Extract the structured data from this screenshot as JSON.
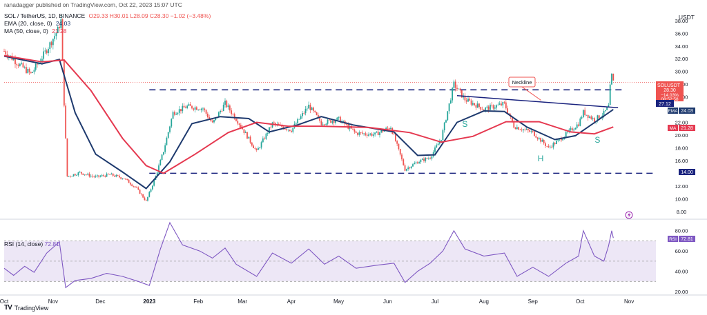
{
  "header": {
    "publisher": "ranadagger published on TradingView.com, Oct 22, 2023 15:07 UTC",
    "symbol": "SOL / TetherUS, 1D, BINANCE",
    "ohlc": "O29.33 H30.01 L28.09 C28.30 −1.02 (−3.48%)",
    "ema_label": "EMA (20, close, 0)",
    "ema_value": "24.03",
    "ma_label": "MA (50, close, 0)",
    "ma_value": "21.28",
    "currency": "USDT"
  },
  "rsi": {
    "label": "RSI (14, close)",
    "value": "72.81",
    "badge": "RSI",
    "ticks": [
      "80.00",
      "60.00",
      "40.00",
      "20.00"
    ],
    "tick_values": [
      80,
      60,
      40,
      20
    ],
    "upper_band": 70,
    "lower_band": 30
  },
  "badges": {
    "price_symbol": "SOLUSDT",
    "price": "28.30",
    "price_change": "−14.03%",
    "countdown": "08:52:58",
    "level_27": "27.12",
    "ema_tag": "EMA",
    "ema_value": "24.03",
    "ma_tag": "MA",
    "ma_value": "21.28",
    "support": "14.00"
  },
  "annotations": {
    "neckline": "Neckline",
    "left_shoulder": "S",
    "head": "H",
    "right_shoulder": "S"
  },
  "logo": {
    "mark": "TV",
    "text": "TradingView"
  },
  "colors": {
    "up": "#26a69a",
    "down": "#ef5350",
    "ema": "#1e3a6e",
    "ma": "#e53950",
    "level_line": "#1a237e",
    "rsi": "#7e57c2",
    "rsi_band": "#ede7f6",
    "badge_price": "#ef5350",
    "badge_level": "#1a237e",
    "pattern_label": "#26a69a"
  },
  "chart_data": {
    "type": "candlestick",
    "title": "SOL / TetherUS, 1D, BINANCE",
    "x_ticks": [
      "Oct",
      "Nov",
      "Dec",
      "2023",
      "Feb",
      "Mar",
      "Apr",
      "May",
      "Jun",
      "Jul",
      "Aug",
      "Sep",
      "Oct",
      "Nov"
    ],
    "x_tick_dates": [
      "2022-10-01",
      "2022-11-01",
      "2022-12-01",
      "2023-01-01",
      "2023-02-01",
      "2023-03-01",
      "2023-04-01",
      "2023-05-01",
      "2023-06-01",
      "2023-07-01",
      "2023-08-01",
      "2023-09-01",
      "2023-10-01",
      "2023-11-01"
    ],
    "x_range": [
      "2022-10-01",
      "2023-11-18"
    ],
    "y_ticks": [
      "38.00",
      "36.00",
      "34.00",
      "32.00",
      "30.00",
      "28.00",
      "26.00",
      "22.00",
      "20.00",
      "18.00",
      "16.00",
      "12.00",
      "10.00",
      "8.00"
    ],
    "y_tick_values": [
      38,
      36,
      34,
      32,
      30,
      28,
      26,
      22,
      20,
      18,
      16,
      12,
      10,
      8
    ],
    "ylim": [
      7,
      39.5
    ],
    "series": [
      {
        "name": "SOL / TetherUS",
        "kind": "price"
      },
      {
        "name": "EMA (20, close, 0)",
        "kind": "line",
        "last": 24.03
      },
      {
        "name": "MA (50, close, 0)",
        "kind": "line",
        "last": 21.28
      }
    ],
    "price_path": [
      [
        "2022-10-01",
        33.2
      ],
      [
        "2022-10-10",
        31.2
      ],
      [
        "2022-10-18",
        29.6
      ],
      [
        "2022-10-27",
        33.0
      ],
      [
        "2022-11-04",
        36.5
      ],
      [
        "2022-11-06",
        38.0
      ],
      [
        "2022-11-08",
        25.0
      ],
      [
        "2022-11-10",
        13.5
      ],
      [
        "2022-11-18",
        14.1
      ],
      [
        "2022-11-28",
        13.4
      ],
      [
        "2022-12-07",
        13.8
      ],
      [
        "2022-12-16",
        13.2
      ],
      [
        "2022-12-24",
        11.6
      ],
      [
        "2022-12-30",
        9.6
      ],
      [
        "2023-01-05",
        13.5
      ],
      [
        "2023-01-10",
        17.5
      ],
      [
        "2023-01-16",
        23.5
      ],
      [
        "2023-01-25",
        24.5
      ],
      [
        "2023-02-04",
        24.2
      ],
      [
        "2023-02-10",
        21.8
      ],
      [
        "2023-02-18",
        25.0
      ],
      [
        "2023-02-26",
        22.2
      ],
      [
        "2023-03-10",
        17.4
      ],
      [
        "2023-03-20",
        21.8
      ],
      [
        "2023-04-01",
        20.8
      ],
      [
        "2023-04-12",
        24.6
      ],
      [
        "2023-04-20",
        21.9
      ],
      [
        "2023-05-01",
        22.5
      ],
      [
        "2023-05-12",
        20.3
      ],
      [
        "2023-05-24",
        20.1
      ],
      [
        "2023-06-03",
        21.3
      ],
      [
        "2023-06-12",
        14.6
      ],
      [
        "2023-06-20",
        15.8
      ],
      [
        "2023-06-28",
        16.5
      ],
      [
        "2023-07-05",
        19.5
      ],
      [
        "2023-07-13",
        28.0
      ],
      [
        "2023-07-20",
        25.6
      ],
      [
        "2023-08-01",
        24.1
      ],
      [
        "2023-08-14",
        24.9
      ],
      [
        "2023-08-20",
        21.4
      ],
      [
        "2023-09-01",
        20.4
      ],
      [
        "2023-09-11",
        18.0
      ],
      [
        "2023-09-20",
        19.7
      ],
      [
        "2023-09-30",
        21.8
      ],
      [
        "2023-10-03",
        23.6
      ],
      [
        "2023-10-10",
        22.4
      ],
      [
        "2023-10-16",
        23.4
      ],
      [
        "2023-10-19",
        24.5
      ],
      [
        "2023-10-20",
        27.5
      ],
      [
        "2023-10-21",
        29.3
      ],
      [
        "2023-10-22",
        28.3
      ]
    ],
    "ema20": [
      [
        "2022-10-01",
        32.4
      ],
      [
        "2022-10-25",
        31.2
      ],
      [
        "2022-11-05",
        31.9
      ],
      [
        "2022-11-15",
        23.5
      ],
      [
        "2022-11-28",
        17.0
      ],
      [
        "2022-12-15",
        14.2
      ],
      [
        "2022-12-30",
        11.6
      ],
      [
        "2023-01-14",
        15.8
      ],
      [
        "2023-01-28",
        21.8
      ],
      [
        "2023-02-15",
        22.9
      ],
      [
        "2023-03-05",
        22.6
      ],
      [
        "2023-03-18",
        20.5
      ],
      [
        "2023-04-05",
        21.6
      ],
      [
        "2023-04-20",
        22.9
      ],
      [
        "2023-05-10",
        21.6
      ],
      [
        "2023-06-05",
        20.5
      ],
      [
        "2023-06-20",
        16.8
      ],
      [
        "2023-07-01",
        16.9
      ],
      [
        "2023-07-15",
        22.0
      ],
      [
        "2023-08-01",
        23.8
      ],
      [
        "2023-08-14",
        23.7
      ],
      [
        "2023-08-28",
        21.3
      ],
      [
        "2023-09-15",
        19.3
      ],
      [
        "2023-09-28",
        19.9
      ],
      [
        "2023-10-12",
        22.3
      ],
      [
        "2023-10-22",
        24.03
      ]
    ],
    "ma50": [
      [
        "2022-10-01",
        32.5
      ],
      [
        "2022-10-25",
        31.5
      ],
      [
        "2022-11-08",
        31.8
      ],
      [
        "2022-11-25",
        27.0
      ],
      [
        "2022-12-15",
        19.5
      ],
      [
        "2022-12-30",
        15.2
      ],
      [
        "2023-01-10",
        14.0
      ],
      [
        "2023-01-30",
        17.0
      ],
      [
        "2023-02-20",
        20.4
      ],
      [
        "2023-03-10",
        22.0
      ],
      [
        "2023-03-30",
        21.4
      ],
      [
        "2023-04-20",
        21.4
      ],
      [
        "2023-05-20",
        21.2
      ],
      [
        "2023-06-15",
        20.4
      ],
      [
        "2023-07-05",
        18.9
      ],
      [
        "2023-07-25",
        19.8
      ],
      [
        "2023-08-15",
        22.1
      ],
      [
        "2023-09-05",
        22.1
      ],
      [
        "2023-09-25",
        20.5
      ],
      [
        "2023-10-10",
        20.2
      ],
      [
        "2023-10-22",
        21.28
      ]
    ],
    "rsi14": [
      [
        "2022-10-01",
        43
      ],
      [
        "2022-10-07",
        36
      ],
      [
        "2022-10-14",
        45
      ],
      [
        "2022-10-20",
        39
      ],
      [
        "2022-10-28",
        58
      ],
      [
        "2022-11-05",
        69
      ],
      [
        "2022-11-09",
        24
      ],
      [
        "2022-11-15",
        31
      ],
      [
        "2022-11-25",
        33
      ],
      [
        "2022-12-05",
        38
      ],
      [
        "2022-12-15",
        35
      ],
      [
        "2022-12-25",
        30
      ],
      [
        "2023-01-01",
        26
      ],
      [
        "2023-01-08",
        62
      ],
      [
        "2023-01-14",
        88
      ],
      [
        "2023-01-22",
        66
      ],
      [
        "2023-02-02",
        60
      ],
      [
        "2023-02-10",
        53
      ],
      [
        "2023-02-18",
        63
      ],
      [
        "2023-02-25",
        47
      ],
      [
        "2023-03-10",
        35
      ],
      [
        "2023-03-20",
        58
      ],
      [
        "2023-04-01",
        48
      ],
      [
        "2023-04-12",
        62
      ],
      [
        "2023-04-22",
        47
      ],
      [
        "2023-05-01",
        55
      ],
      [
        "2023-05-12",
        43
      ],
      [
        "2023-05-25",
        46
      ],
      [
        "2023-06-05",
        48
      ],
      [
        "2023-06-12",
        29
      ],
      [
        "2023-06-20",
        40
      ],
      [
        "2023-06-28",
        48
      ],
      [
        "2023-07-06",
        60
      ],
      [
        "2023-07-13",
        80
      ],
      [
        "2023-07-20",
        62
      ],
      [
        "2023-08-01",
        55
      ],
      [
        "2023-08-14",
        58
      ],
      [
        "2023-08-22",
        35
      ],
      [
        "2023-09-01",
        44
      ],
      [
        "2023-09-11",
        35
      ],
      [
        "2023-09-22",
        48
      ],
      [
        "2023-09-30",
        55
      ],
      [
        "2023-10-03",
        80
      ],
      [
        "2023-10-10",
        55
      ],
      [
        "2023-10-16",
        50
      ],
      [
        "2023-10-19",
        65
      ],
      [
        "2023-10-21",
        80
      ],
      [
        "2023-10-22",
        72.81
      ]
    ],
    "levels": [
      {
        "value": 27.12,
        "from": "2023-01-01",
        "to": "2023-10-28"
      },
      {
        "value": 14.0,
        "from": "2023-01-01",
        "to": "2023-11-18"
      }
    ],
    "neckline": [
      [
        "2023-07-15",
        26.2
      ],
      [
        "2023-10-25",
        24.3
      ]
    ],
    "pattern_label_positions": [
      {
        "label": "S",
        "date": "2023-07-20",
        "price": 21.3
      },
      {
        "label": "H",
        "date": "2023-09-06",
        "price": 15.9
      },
      {
        "label": "S",
        "date": "2023-10-12",
        "price": 18.8
      }
    ]
  }
}
